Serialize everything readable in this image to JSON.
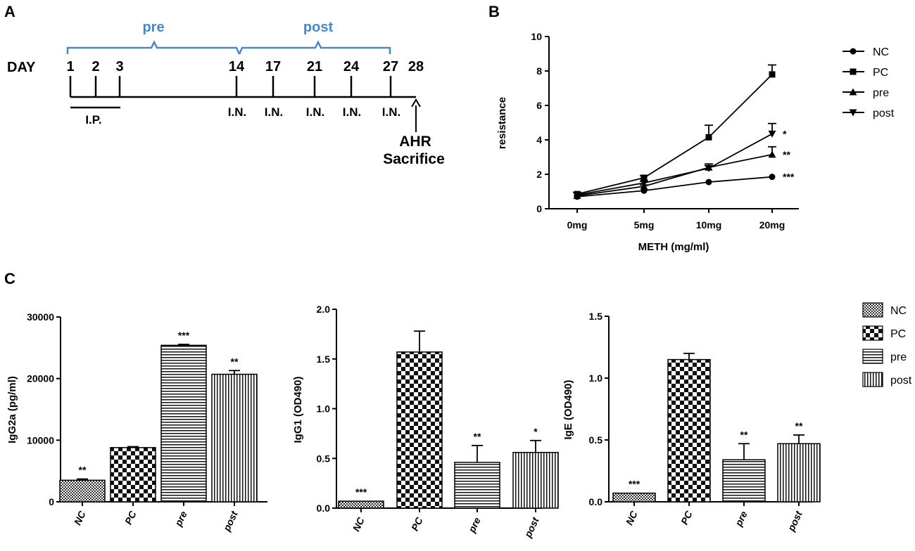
{
  "panels": {
    "a": "A",
    "b": "B",
    "c": "C"
  },
  "timeline": {
    "day_label": "DAY",
    "pre_label": "pre",
    "post_label": "post",
    "days": [
      "1",
      "2",
      "3",
      "14",
      "17",
      "21",
      "24",
      "27",
      "28"
    ],
    "ip_label": "I.P.",
    "in_label": "I.N.",
    "endpoint_line1": "AHR",
    "endpoint_line2": "Sacrifice"
  },
  "chart_data": [
    {
      "type": "line",
      "title": "",
      "categories": [
        "0mg",
        "5mg",
        "10mg",
        "20mg"
      ],
      "xlabel": "METH (mg/ml)",
      "ylabel": "resistance",
      "ylim": [
        0,
        10
      ],
      "yticks": [
        "0",
        "2",
        "4",
        "6",
        "8",
        "10"
      ],
      "series": [
        {
          "name": "NC",
          "marker": "circle",
          "values": [
            0.7,
            1.05,
            1.55,
            1.85
          ],
          "errors": [
            0.05,
            0.05,
            0.05,
            0.05
          ],
          "sig": "***"
        },
        {
          "name": "PC",
          "marker": "square",
          "values": [
            0.85,
            1.8,
            4.15,
            7.8
          ],
          "errors": [
            0.1,
            0.12,
            0.7,
            0.55
          ],
          "sig": ""
        },
        {
          "name": "pre",
          "marker": "triangle-up",
          "values": [
            0.75,
            1.3,
            2.4,
            3.15
          ],
          "errors": [
            0.05,
            0.08,
            0.2,
            0.45
          ],
          "sig": "**"
        },
        {
          "name": "post",
          "marker": "triangle-down",
          "values": [
            0.8,
            1.5,
            2.35,
            4.35
          ],
          "errors": [
            0.05,
            0.1,
            0.15,
            0.6
          ],
          "sig": "*"
        }
      ],
      "legend_position": "right"
    },
    {
      "type": "bar",
      "title": "",
      "categories": [
        "NC",
        "PC",
        "pre",
        "post"
      ],
      "values": [
        3500,
        8800,
        25400,
        20700
      ],
      "errors": [
        200,
        150,
        150,
        600
      ],
      "sig": [
        "**",
        "",
        "***",
        "**"
      ],
      "xlabel": "",
      "ylabel": "IgG2a (pg/ml)",
      "ylim": [
        0,
        30000
      ],
      "yticks": [
        "0",
        "10000",
        "20000",
        "30000"
      ]
    },
    {
      "type": "bar",
      "title": "",
      "categories": [
        "NC",
        "PC",
        "pre",
        "post"
      ],
      "values": [
        0.07,
        1.57,
        0.46,
        0.56
      ],
      "errors": [
        0.0,
        0.21,
        0.17,
        0.12
      ],
      "sig": [
        "***",
        "",
        "**",
        "*"
      ],
      "xlabel": "",
      "ylabel": "IgG1 (OD490)",
      "ylim": [
        0,
        2.0
      ],
      "yticks": [
        "0.0",
        "0.5",
        "1.0",
        "1.5",
        "2.0"
      ]
    },
    {
      "type": "bar",
      "title": "",
      "categories": [
        "NC",
        "PC",
        "pre",
        "post"
      ],
      "values": [
        0.07,
        1.15,
        0.34,
        0.47
      ],
      "errors": [
        0.0,
        0.05,
        0.13,
        0.07
      ],
      "sig": [
        "***",
        "",
        "**",
        "**"
      ],
      "xlabel": "",
      "ylabel": "IgE (OD490)",
      "ylim": [
        0,
        1.5
      ],
      "yticks": [
        "0.0",
        "0.5",
        "1.0",
        "1.5"
      ],
      "legend_position": "right"
    }
  ],
  "bar_legend": [
    "NC",
    "PC",
    "pre",
    "post"
  ]
}
